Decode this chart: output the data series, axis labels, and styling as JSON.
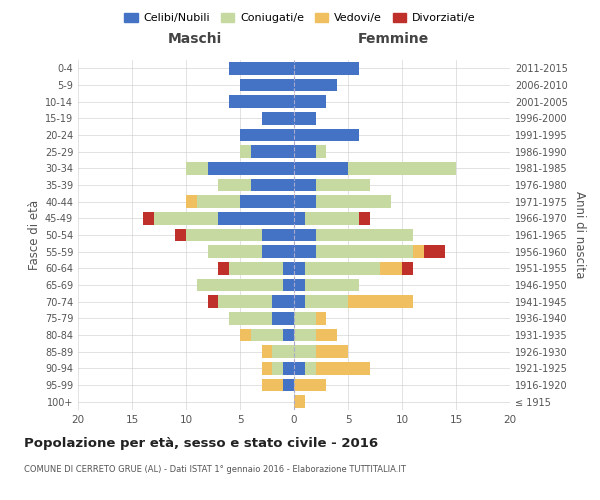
{
  "age_groups": [
    "100+",
    "95-99",
    "90-94",
    "85-89",
    "80-84",
    "75-79",
    "70-74",
    "65-69",
    "60-64",
    "55-59",
    "50-54",
    "45-49",
    "40-44",
    "35-39",
    "30-34",
    "25-29",
    "20-24",
    "15-19",
    "10-14",
    "5-9",
    "0-4"
  ],
  "birth_years": [
    "≤ 1915",
    "1916-1920",
    "1921-1925",
    "1926-1930",
    "1931-1935",
    "1936-1940",
    "1941-1945",
    "1946-1950",
    "1951-1955",
    "1956-1960",
    "1961-1965",
    "1966-1970",
    "1971-1975",
    "1976-1980",
    "1981-1985",
    "1986-1990",
    "1991-1995",
    "1996-2000",
    "2001-2005",
    "2006-2010",
    "2011-2015"
  ],
  "male": {
    "celibi": [
      0,
      1,
      1,
      0,
      1,
      2,
      2,
      1,
      1,
      3,
      3,
      7,
      5,
      4,
      8,
      4,
      5,
      3,
      6,
      5,
      6
    ],
    "coniugati": [
      0,
      0,
      1,
      2,
      3,
      4,
      5,
      8,
      5,
      5,
      7,
      6,
      4,
      3,
      2,
      1,
      0,
      0,
      0,
      0,
      0
    ],
    "vedovi": [
      0,
      2,
      1,
      1,
      1,
      0,
      0,
      0,
      0,
      0,
      0,
      0,
      1,
      0,
      0,
      0,
      0,
      0,
      0,
      0,
      0
    ],
    "divorziati": [
      0,
      0,
      0,
      0,
      0,
      0,
      1,
      0,
      1,
      0,
      1,
      1,
      0,
      0,
      0,
      0,
      0,
      0,
      0,
      0,
      0
    ]
  },
  "female": {
    "nubili": [
      0,
      0,
      1,
      0,
      0,
      0,
      1,
      1,
      1,
      2,
      2,
      1,
      2,
      2,
      5,
      2,
      6,
      2,
      3,
      4,
      6
    ],
    "coniugate": [
      0,
      0,
      1,
      2,
      2,
      2,
      4,
      5,
      7,
      9,
      9,
      5,
      7,
      5,
      10,
      1,
      0,
      0,
      0,
      0,
      0
    ],
    "vedove": [
      1,
      3,
      5,
      3,
      2,
      1,
      6,
      0,
      2,
      1,
      0,
      0,
      0,
      0,
      0,
      0,
      0,
      0,
      0,
      0,
      0
    ],
    "divorziate": [
      0,
      0,
      0,
      0,
      0,
      0,
      0,
      0,
      1,
      2,
      0,
      1,
      0,
      0,
      0,
      0,
      0,
      0,
      0,
      0,
      0
    ]
  },
  "colors": {
    "celibi_nubili": "#4472c4",
    "coniugati": "#c5d9a0",
    "vedovi": "#f0c060",
    "divorziati": "#c0302a"
  },
  "title": "Popolazione per età, sesso e stato civile - 2016",
  "subtitle": "COMUNE DI CERRETO GRUE (AL) - Dati ISTAT 1° gennaio 2016 - Elaborazione TUTTITALIA.IT",
  "xlabel_left": "Maschi",
  "xlabel_right": "Femmine",
  "ylabel_left": "Fasce di età",
  "ylabel_right": "Anni di nascita",
  "xlim": 20,
  "background_color": "#ffffff",
  "grid_color": "#cccccc",
  "legend_labels": [
    "Celibi/Nubili",
    "Coniugati/e",
    "Vedovi/e",
    "Divorziati/e"
  ]
}
